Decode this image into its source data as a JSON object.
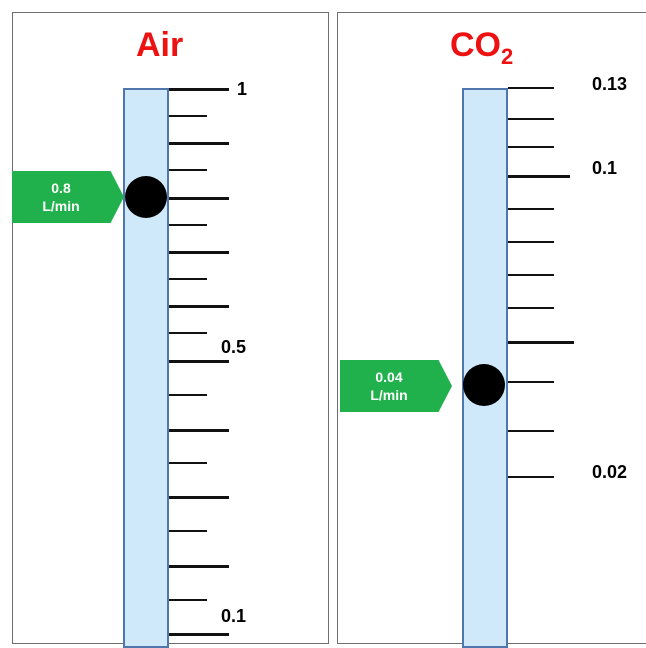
{
  "air": {
    "title": "Air",
    "reading": "0.8",
    "reading_unit": "L/min",
    "labels": {
      "top": "1",
      "mid": "0.5",
      "bottom": "0.1"
    }
  },
  "co2": {
    "title_main": "CO",
    "title_sub": "2",
    "reading": "0.04",
    "reading_unit": "L/min",
    "labels": {
      "top": "0.13",
      "upper": "0.1",
      "lower": "0.02"
    }
  },
  "colors": {
    "title": "#ee1111",
    "tube_fill": "#cfe8fa",
    "tube_border": "#4f77ad",
    "marker": "#21b14c",
    "float": "#000000"
  }
}
